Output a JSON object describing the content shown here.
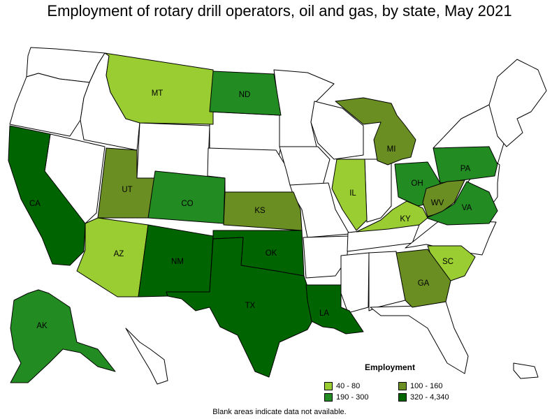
{
  "title": "Employment of rotary drill operators, oil and gas, by state, May 2021",
  "note": "Blank areas indicate data not available.",
  "legend": {
    "title": "Employment",
    "ranges": [
      {
        "label": "40 - 80",
        "color": "#9acd32"
      },
      {
        "label": "100 - 160",
        "color": "#6b8e23"
      },
      {
        "label": "190 - 300",
        "color": "#228b22"
      },
      {
        "label": "320 - 4,340",
        "color": "#006400"
      }
    ]
  },
  "states": [
    {
      "abbr": "MT",
      "range": "40 - 80"
    },
    {
      "abbr": "ND",
      "range": "190 - 300"
    },
    {
      "abbr": "MI",
      "range": "100 - 160"
    },
    {
      "abbr": "PA",
      "range": "190 - 300"
    },
    {
      "abbr": "UT",
      "range": "100 - 160"
    },
    {
      "abbr": "CO",
      "range": "190 - 300"
    },
    {
      "abbr": "KS",
      "range": "100 - 160"
    },
    {
      "abbr": "IL",
      "range": "40 - 80"
    },
    {
      "abbr": "OH",
      "range": "190 - 300"
    },
    {
      "abbr": "WV",
      "range": "100 - 160"
    },
    {
      "abbr": "VA",
      "range": "190 - 300"
    },
    {
      "abbr": "KY",
      "range": "40 - 80"
    },
    {
      "abbr": "CA",
      "range": "320 - 4,340"
    },
    {
      "abbr": "AZ",
      "range": "40 - 80"
    },
    {
      "abbr": "NM",
      "range": "320 - 4,340"
    },
    {
      "abbr": "OK",
      "range": "320 - 4,340"
    },
    {
      "abbr": "TX",
      "range": "320 - 4,340"
    },
    {
      "abbr": "LA",
      "range": "320 - 4,340"
    },
    {
      "abbr": "SC",
      "range": "40 - 80"
    },
    {
      "abbr": "GA",
      "range": "100 - 160"
    },
    {
      "abbr": "AK",
      "range": "190 - 300"
    }
  ]
}
